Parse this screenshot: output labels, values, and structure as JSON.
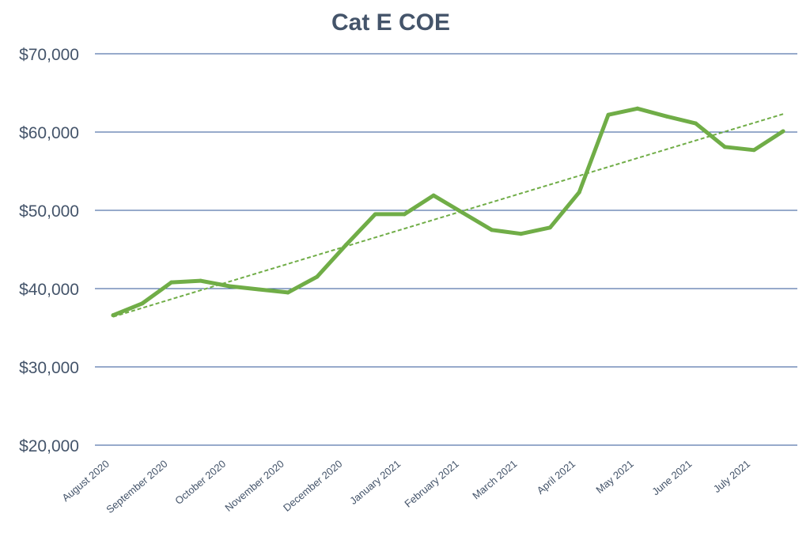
{
  "chart_data": {
    "type": "line",
    "title": "Cat E COE",
    "xlabel": "",
    "ylabel": "",
    "ylim": [
      20000,
      70000
    ],
    "yticks": [
      20000,
      30000,
      40000,
      50000,
      60000,
      70000
    ],
    "ytick_labels": [
      "$20,000",
      "$30,000",
      "$40,000",
      "$50,000",
      "$60,000",
      "$70,000"
    ],
    "grid": true,
    "categories": [
      "August 2020",
      "",
      "September 2020",
      "",
      "October 2020",
      "",
      "November 2020",
      "",
      "December 2020",
      "",
      "January 2021",
      "",
      "February 2021",
      "",
      "March 2021",
      "",
      "April 2021",
      "",
      "May 2021",
      "",
      "June 2021",
      "",
      "July 2021",
      ""
    ],
    "x_tick_labels": [
      "August 2020",
      "September 2020",
      "October 2020",
      "November 2020",
      "December 2020",
      "January 2021",
      "February 2021",
      "March 2021",
      "April 2021",
      "May 2021",
      "June 2021",
      "July 2021"
    ],
    "series": [
      {
        "name": "Cat E COE",
        "color": "#70ad47",
        "values": [
          36600,
          38100,
          40800,
          41000,
          40300,
          39900,
          39500,
          41500,
          45600,
          49500,
          49500,
          51900,
          49700,
          47500,
          47000,
          47800,
          52300,
          62200,
          63000,
          62000,
          61100,
          58100,
          57700,
          60100
        ]
      }
    ],
    "trendline": {
      "type": "linear",
      "style": "dashed",
      "color": "#70ad47",
      "start": 36400,
      "end": 62300
    }
  }
}
